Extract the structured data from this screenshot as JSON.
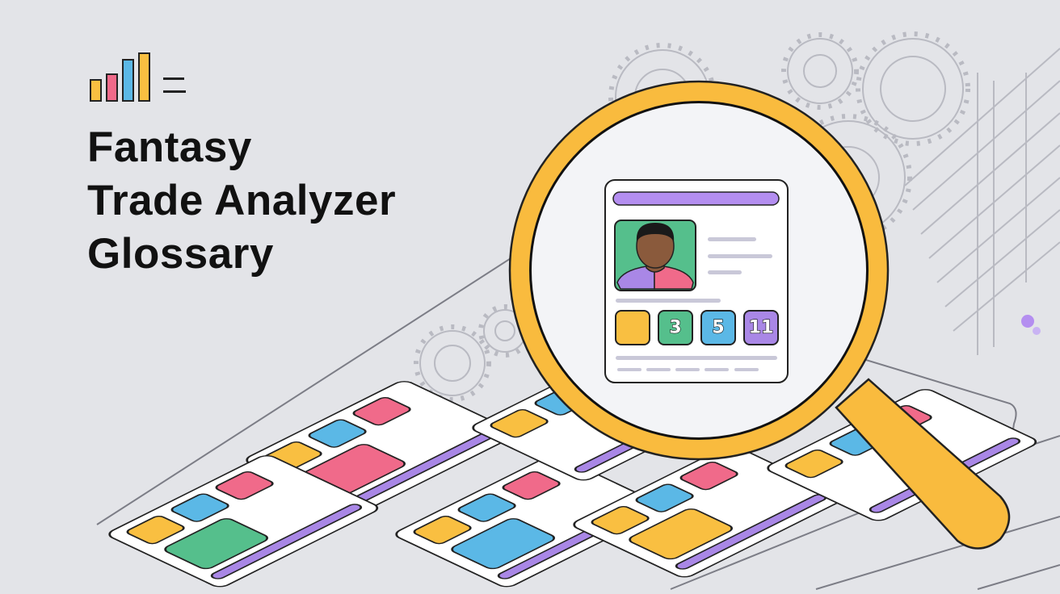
{
  "title": {
    "lines": [
      "Fantasy",
      "Trade Analyzer",
      "Glossary"
    ]
  },
  "logo": {
    "icon": "bar-chart-menu-icon",
    "bar_colors": [
      "#f9bf41",
      "#f06a8a",
      "#5bb8e6",
      "#f9bf41"
    ]
  },
  "magnified_card": {
    "badges": [
      {
        "label": "",
        "color": "#f9bf41"
      },
      {
        "label": "3",
        "color": "#55bf8c"
      },
      {
        "label": "5",
        "color": "#5bb8e6"
      },
      {
        "label": "11",
        "color": "#a987e6"
      }
    ],
    "header_color": "#b48ef0",
    "avatar_bg": "#55bf8c"
  },
  "colors": {
    "background": "#e3e4e8",
    "magnifier": "#f9bb3e",
    "accent_purple": "#a987e6",
    "pink": "#f06a8a",
    "green": "#55bf8c",
    "blue": "#5bb8e6",
    "yellow": "#f9bf41"
  }
}
